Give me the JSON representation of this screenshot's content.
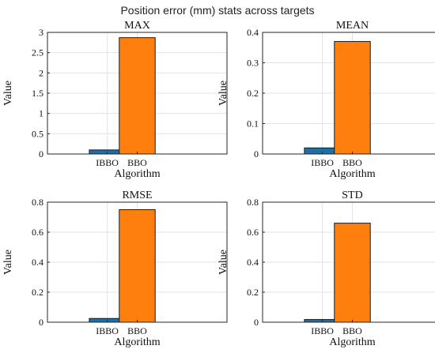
{
  "figure": {
    "title": "Position error (mm) stats across targets"
  },
  "chart_data": [
    {
      "type": "bar",
      "title": "MAX",
      "xlabel": "Algorithm",
      "ylabel": "Value",
      "categories": [
        "IBBO",
        "BBO"
      ],
      "values": [
        0.1,
        2.87
      ],
      "colors": [
        "#1f6ea8",
        "#ff7f0e"
      ],
      "ylim": [
        0,
        3
      ],
      "yticks": [
        0,
        0.5,
        1,
        1.5,
        2,
        2.5,
        3
      ],
      "ytick_labels": [
        "0",
        "0.5",
        "1",
        "1.5",
        "2",
        "2.5",
        "3"
      ],
      "grid": true
    },
    {
      "type": "bar",
      "title": "MEAN",
      "xlabel": "Algorithm",
      "ylabel": "Value",
      "categories": [
        "IBBO",
        "BBO"
      ],
      "values": [
        0.02,
        0.37
      ],
      "colors": [
        "#1f6ea8",
        "#ff7f0e"
      ],
      "ylim": [
        0,
        0.4
      ],
      "yticks": [
        0,
        0.1,
        0.2,
        0.3,
        0.4
      ],
      "ytick_labels": [
        "0",
        "0.1",
        "0.2",
        "0.3",
        "0.4"
      ],
      "grid": true
    },
    {
      "type": "bar",
      "title": "RMSE",
      "xlabel": "Algorithm",
      "ylabel": "Value",
      "categories": [
        "IBBO",
        "BBO"
      ],
      "values": [
        0.025,
        0.75
      ],
      "colors": [
        "#1f6ea8",
        "#ff7f0e"
      ],
      "ylim": [
        0,
        0.8
      ],
      "yticks": [
        0,
        0.2,
        0.4,
        0.6,
        0.8
      ],
      "ytick_labels": [
        "0",
        "0.2",
        "0.4",
        "0.6",
        "0.8"
      ],
      "grid": true
    },
    {
      "type": "bar",
      "title": "STD",
      "xlabel": "Algorithm",
      "ylabel": "Value",
      "categories": [
        "IBBO",
        "BBO"
      ],
      "values": [
        0.018,
        0.66
      ],
      "colors": [
        "#1f6ea8",
        "#ff7f0e"
      ],
      "ylim": [
        0,
        0.8
      ],
      "yticks": [
        0,
        0.2,
        0.4,
        0.6,
        0.8
      ],
      "ytick_labels": [
        "0",
        "0.2",
        "0.4",
        "0.6",
        "0.8"
      ],
      "grid": true
    }
  ]
}
